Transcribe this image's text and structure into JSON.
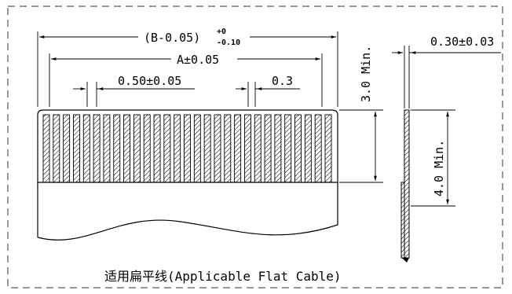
{
  "dimensions": {
    "overall_width": "(B-0.05)",
    "overall_tol_upper": "+0",
    "overall_tol_lower": "-0.10",
    "conductor_span": "A±0.05",
    "pitch": "0.50±0.05",
    "conductor_width": "0.3",
    "exposed_length": "3.0 Min.",
    "thickness": "0.30±0.03",
    "stiffener_length": "4.0 Min."
  },
  "caption": "适用扁平线(Applicable Flat Cable)"
}
